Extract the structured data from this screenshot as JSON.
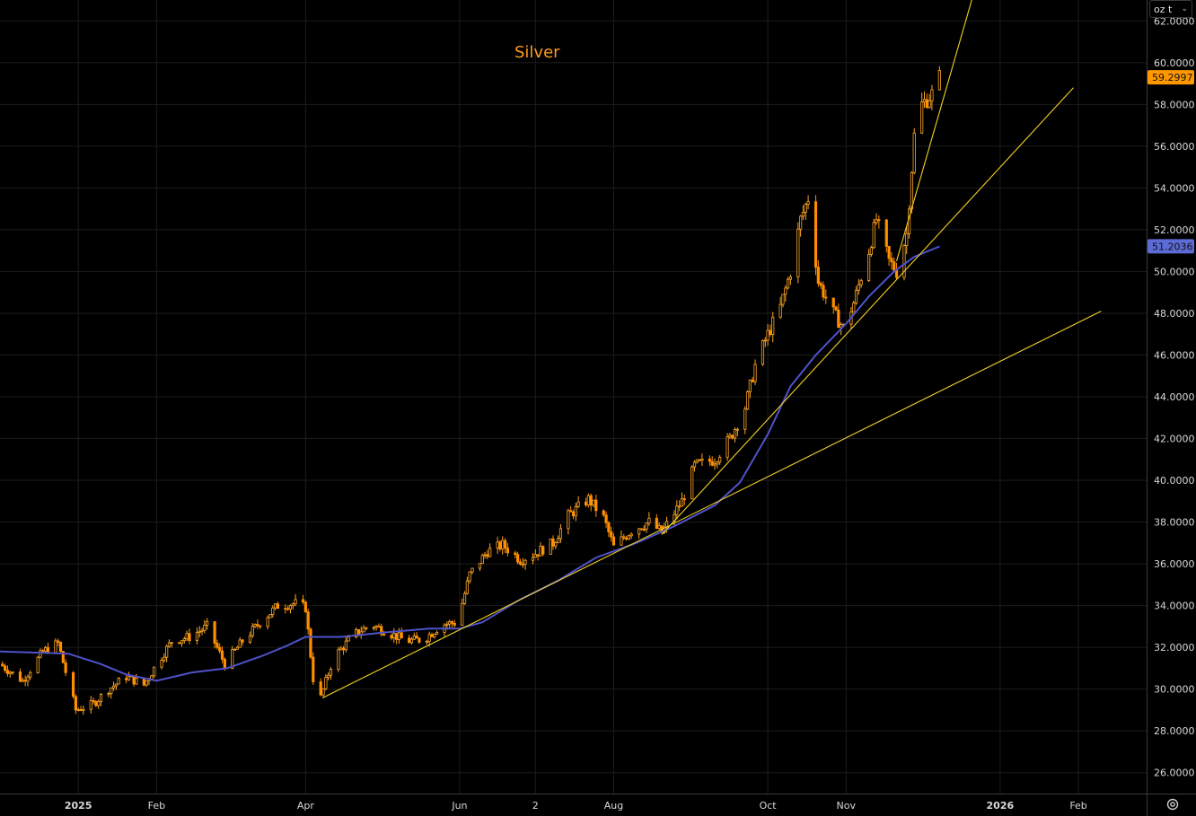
{
  "title": "Silver",
  "unit_selector": {
    "value": "oz t",
    "icon": "chevron-down-icon"
  },
  "settings_icon": "gear-icon",
  "colors": {
    "up": "#ffa726",
    "down": "#ff8f00",
    "ma": "#4f52c9",
    "trend": "#f2d024",
    "last_price_bg": "#ff9800",
    "ma_label_bg": "#5c6bd6"
  },
  "chart_data": {
    "type": "candlestick",
    "title": "Silver",
    "ylim": [
      25,
      63
    ],
    "y_ticks": [
      26,
      28,
      30,
      32,
      34,
      36,
      38,
      40,
      42,
      44,
      46,
      48,
      50,
      52,
      54,
      56,
      58,
      60,
      62
    ],
    "y_tick_labels": [
      "26.0000",
      "28.0000",
      "30.0000",
      "32.0000",
      "34.0000",
      "36.0000",
      "38.0000",
      "40.0000",
      "42.0000",
      "44.0000",
      "46.0000",
      "48.0000",
      "50.0000",
      "52.0000",
      "54.0000",
      "56.0000",
      "58.0000",
      "60.0000",
      "62.0000"
    ],
    "x_range": [
      "2024-12-01",
      "2026-02-28"
    ],
    "x_ticks": [
      {
        "date": "2025-01-01",
        "label": "2025",
        "bold": true
      },
      {
        "date": "2025-02-01",
        "label": "Feb",
        "bold": false
      },
      {
        "date": "2025-04-01",
        "label": "Apr",
        "bold": false
      },
      {
        "date": "2025-06-01",
        "label": "Jun",
        "bold": false
      },
      {
        "date": "2025-07-01",
        "label": "2",
        "bold": false
      },
      {
        "date": "2025-08-01",
        "label": "Aug",
        "bold": false
      },
      {
        "date": "2025-10-01",
        "label": "Oct",
        "bold": false
      },
      {
        "date": "2025-11-01",
        "label": "Nov",
        "bold": false
      },
      {
        "date": "2026-01-01",
        "label": "2026",
        "bold": true
      },
      {
        "date": "2026-02-01",
        "label": "Feb",
        "bold": false
      }
    ],
    "price_anchors": [
      [
        "2024-12-01",
        31.2
      ],
      [
        "2024-12-10",
        30.4
      ],
      [
        "2024-12-18",
        31.8
      ],
      [
        "2024-12-24",
        32.2
      ],
      [
        "2024-12-31",
        29.0
      ],
      [
        "2025-01-07",
        29.3
      ],
      [
        "2025-01-13",
        30.0
      ],
      [
        "2025-01-20",
        30.6
      ],
      [
        "2025-01-27",
        30.2
      ],
      [
        "2025-02-01",
        31.2
      ],
      [
        "2025-02-07",
        32.3
      ],
      [
        "2025-02-14",
        32.5
      ],
      [
        "2025-02-21",
        33.0
      ],
      [
        "2025-02-28",
        31.2
      ],
      [
        "2025-03-07",
        32.3
      ],
      [
        "2025-03-14",
        33.2
      ],
      [
        "2025-03-21",
        34.0
      ],
      [
        "2025-03-28",
        34.1
      ],
      [
        "2025-04-01",
        33.9
      ],
      [
        "2025-04-04",
        30.5
      ],
      [
        "2025-04-07",
        29.6
      ],
      [
        "2025-04-12",
        31.5
      ],
      [
        "2025-04-20",
        32.6
      ],
      [
        "2025-04-27",
        33.1
      ],
      [
        "2025-05-04",
        32.7
      ],
      [
        "2025-05-11",
        32.3
      ],
      [
        "2025-05-18",
        32.4
      ],
      [
        "2025-05-25",
        33.1
      ],
      [
        "2025-05-31",
        33.2
      ],
      [
        "2025-06-05",
        35.5
      ],
      [
        "2025-06-12",
        36.6
      ],
      [
        "2025-06-18",
        36.9
      ],
      [
        "2025-06-25",
        36.2
      ],
      [
        "2025-07-01",
        36.5
      ],
      [
        "2025-07-08",
        37.0
      ],
      [
        "2025-07-14",
        38.3
      ],
      [
        "2025-07-22",
        39.1
      ],
      [
        "2025-07-28",
        38.2
      ],
      [
        "2025-08-01",
        36.8
      ],
      [
        "2025-08-08",
        37.6
      ],
      [
        "2025-08-15",
        38.0
      ],
      [
        "2025-08-20",
        37.5
      ],
      [
        "2025-08-28",
        39.0
      ],
      [
        "2025-09-02",
        40.7
      ],
      [
        "2025-09-10",
        41.0
      ],
      [
        "2025-09-16",
        42.0
      ],
      [
        "2025-09-22",
        43.5
      ],
      [
        "2025-09-26",
        45.5
      ],
      [
        "2025-10-01",
        47.0
      ],
      [
        "2025-10-06",
        48.3
      ],
      [
        "2025-10-10",
        50.0
      ],
      [
        "2025-10-14",
        52.5
      ],
      [
        "2025-10-17",
        53.5
      ],
      [
        "2025-10-21",
        49.5
      ],
      [
        "2025-10-27",
        48.0
      ],
      [
        "2025-10-31",
        47.3
      ],
      [
        "2025-11-04",
        48.5
      ],
      [
        "2025-11-10",
        51.0
      ],
      [
        "2025-11-13",
        52.5
      ],
      [
        "2025-11-18",
        50.5
      ],
      [
        "2025-11-21",
        50.0
      ],
      [
        "2025-11-25",
        51.8
      ],
      [
        "2025-11-28",
        56.5
      ],
      [
        "2025-12-01",
        58.0
      ],
      [
        "2025-12-05",
        58.5
      ],
      [
        "2025-12-08",
        59.3
      ]
    ],
    "moving_average": [
      [
        "2024-12-01",
        31.8
      ],
      [
        "2024-12-28",
        31.7
      ],
      [
        "2025-01-10",
        31.2
      ],
      [
        "2025-01-20",
        30.7
      ],
      [
        "2025-02-01",
        30.4
      ],
      [
        "2025-02-15",
        30.8
      ],
      [
        "2025-03-01",
        31.0
      ],
      [
        "2025-03-15",
        31.6
      ],
      [
        "2025-03-25",
        32.1
      ],
      [
        "2025-04-01",
        32.5
      ],
      [
        "2025-04-15",
        32.5
      ],
      [
        "2025-05-01",
        32.7
      ],
      [
        "2025-05-20",
        32.9
      ],
      [
        "2025-06-01",
        32.9
      ],
      [
        "2025-06-10",
        33.2
      ],
      [
        "2025-06-25",
        34.3
      ],
      [
        "2025-07-10",
        35.2
      ],
      [
        "2025-07-25",
        36.3
      ],
      [
        "2025-08-10",
        37.0
      ],
      [
        "2025-08-25",
        37.8
      ],
      [
        "2025-09-10",
        38.8
      ],
      [
        "2025-09-20",
        39.9
      ],
      [
        "2025-10-01",
        42.2
      ],
      [
        "2025-10-10",
        44.5
      ],
      [
        "2025-10-20",
        46.0
      ],
      [
        "2025-11-01",
        47.5
      ],
      [
        "2025-11-10",
        48.8
      ],
      [
        "2025-11-20",
        50.0
      ],
      [
        "2025-11-28",
        50.7
      ],
      [
        "2025-12-08",
        51.2
      ]
    ],
    "trendlines": [
      {
        "start": [
          "2025-04-08",
          29.6
        ],
        "end": [
          "2026-02-10",
          48.1
        ]
      },
      {
        "start": [
          "2025-08-20",
          37.4
        ],
        "end": [
          "2026-01-30",
          58.8
        ]
      },
      {
        "start": [
          "2025-11-21",
          50.5
        ],
        "end": [
          "2025-12-21",
          63.1
        ]
      }
    ],
    "last_price": {
      "value": 59.2997,
      "label": "59.2997"
    },
    "ma_value": {
      "value": 51.2036,
      "label": "51.2036"
    },
    "grid": true
  }
}
